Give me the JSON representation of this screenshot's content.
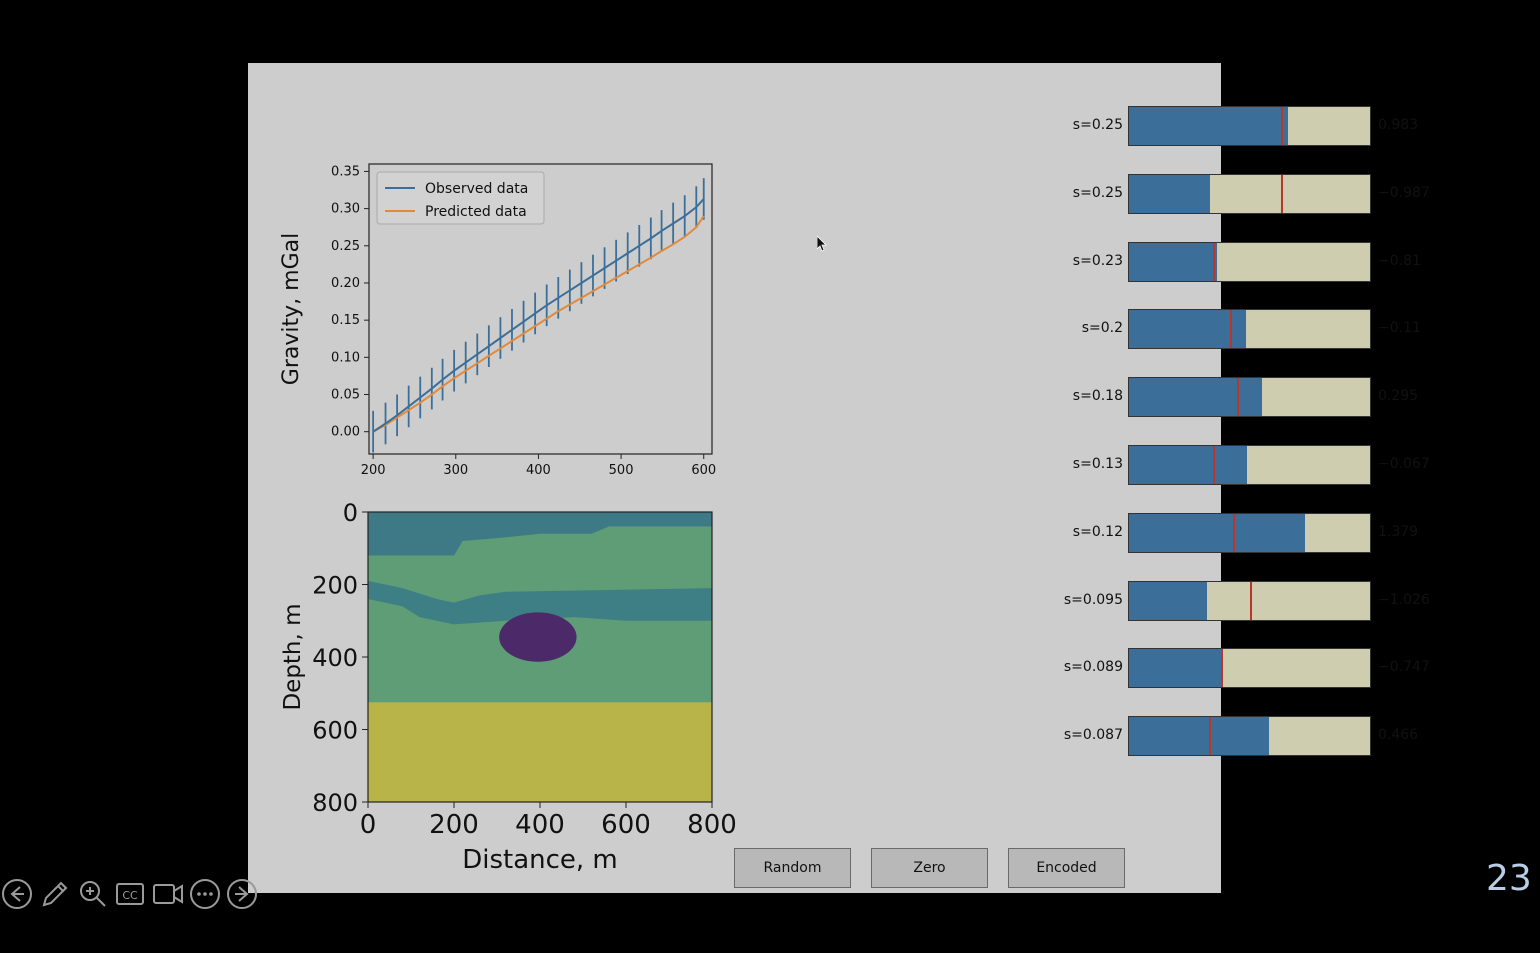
{
  "slide": {
    "page_number": "23"
  },
  "chart_data": [
    {
      "type": "line",
      "xlabel": "Distance, m",
      "ylabel": "Gravity, mGal",
      "xlim": [
        195,
        610
      ],
      "ylim": [
        -0.03,
        0.36
      ],
      "x_ticks": [
        "200",
        "300",
        "400",
        "500",
        "600"
      ],
      "y_ticks": [
        "0.00",
        "0.05",
        "0.10",
        "0.15",
        "0.20",
        "0.25",
        "0.30",
        "0.35"
      ],
      "legend_position": "top-left",
      "error_bar_half_width": 0.028,
      "series": [
        {
          "name": "Observed data",
          "color": "#3b6f9a",
          "x": [
            200,
            215,
            229,
            243,
            257,
            271,
            284,
            298,
            312,
            326,
            340,
            354,
            368,
            382,
            396,
            410,
            424,
            438,
            452,
            466,
            480,
            494,
            508,
            522,
            536,
            549,
            563,
            577,
            591,
            600
          ],
          "y": [
            0.0,
            0.011,
            0.022,
            0.034,
            0.046,
            0.058,
            0.07,
            0.082,
            0.093,
            0.104,
            0.115,
            0.126,
            0.137,
            0.148,
            0.159,
            0.17,
            0.18,
            0.19,
            0.2,
            0.21,
            0.22,
            0.23,
            0.24,
            0.25,
            0.26,
            0.27,
            0.28,
            0.29,
            0.302,
            0.313
          ]
        },
        {
          "name": "Predicted data",
          "color": "#e08a3c",
          "x": [
            200,
            215,
            229,
            243,
            257,
            271,
            284,
            298,
            312,
            326,
            340,
            354,
            368,
            382,
            396,
            410,
            424,
            438,
            452,
            466,
            480,
            494,
            508,
            522,
            536,
            549,
            563,
            577,
            591,
            600
          ],
          "y": [
            0.0,
            0.009,
            0.019,
            0.029,
            0.039,
            0.05,
            0.061,
            0.072,
            0.082,
            0.092,
            0.102,
            0.112,
            0.122,
            0.132,
            0.142,
            0.152,
            0.162,
            0.171,
            0.18,
            0.189,
            0.198,
            0.207,
            0.216,
            0.225,
            0.234,
            0.243,
            0.252,
            0.262,
            0.275,
            0.29
          ]
        }
      ]
    },
    {
      "type": "heatmap",
      "xlabel": "Distance, m",
      "ylabel": "Depth, m",
      "xlim": [
        0,
        800
      ],
      "ylim": [
        800,
        0
      ],
      "x_ticks": [
        "0",
        "200",
        "400",
        "600",
        "800"
      ],
      "y_ticks": [
        "0",
        "200",
        "400",
        "600",
        "800"
      ],
      "description_values": {
        "colors": {
          "top_layer": "#3e7a86",
          "green_layer": "#5e9d76",
          "blue_band": "#3d7f84",
          "anomaly": "#4c2a6a",
          "bottom_layer": "#b9b44a"
        }
      }
    }
  ],
  "sliders": [
    {
      "label": "s=0.25",
      "value": "0.983",
      "fill": 0.66,
      "marker": 0.63
    },
    {
      "label": "s=0.25",
      "value": "−0.987",
      "fill": 0.335,
      "marker": 0.63
    },
    {
      "label": "s=0.23",
      "value": "−0.81",
      "fill": 0.365,
      "marker": 0.35
    },
    {
      "label": "s=0.2",
      "value": "−0.11",
      "fill": 0.485,
      "marker": 0.42
    },
    {
      "label": "s=0.18",
      "value": "0.295",
      "fill": 0.55,
      "marker": 0.45
    },
    {
      "label": "s=0.13",
      "value": "−0.067",
      "fill": 0.49,
      "marker": 0.35
    },
    {
      "label": "s=0.12",
      "value": "1.379",
      "fill": 0.73,
      "marker": 0.43
    },
    {
      "label": "s=0.095",
      "value": "−1.026",
      "fill": 0.325,
      "marker": 0.5
    },
    {
      "label": "s=0.089",
      "value": "−0.747",
      "fill": 0.38,
      "marker": 0.38
    },
    {
      "label": "s=0.087",
      "value": "0.466",
      "fill": 0.58,
      "marker": 0.33
    }
  ],
  "buttons": {
    "random": "Random",
    "zero": "Zero",
    "encoded": "Encoded"
  },
  "toolbar_icons": [
    "previous-icon",
    "pen-icon",
    "zoom-icon",
    "captions-icon",
    "video-icon",
    "more-icon",
    "next-icon"
  ]
}
